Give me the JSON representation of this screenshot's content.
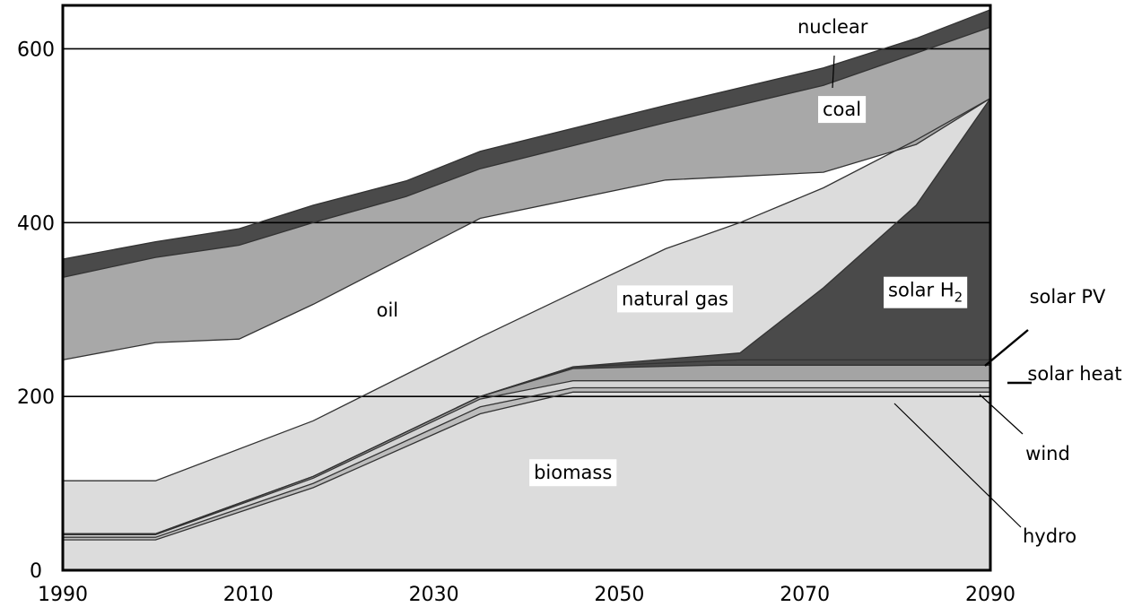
{
  "chart_data": {
    "type": "area",
    "stacked": true,
    "title": "",
    "xlabel": "",
    "ylabel": "",
    "xlim": [
      1990,
      2090
    ],
    "ylim": [
      0,
      650
    ],
    "x_ticks": [
      1990,
      2010,
      2030,
      2050,
      2070,
      2090
    ],
    "y_ticks": [
      0,
      200,
      400,
      600
    ],
    "gridlines": [
      200,
      400,
      600
    ],
    "series": [
      {
        "name": "biomass",
        "color": "#dcdcdc",
        "top": [
          [
            1990,
            35
          ],
          [
            2000,
            35
          ],
          [
            2017,
            95
          ],
          [
            2035,
            180
          ],
          [
            2045,
            205
          ],
          [
            2090,
            205
          ]
        ]
      },
      {
        "name": "hydro",
        "color": "#bcbcbc",
        "top": [
          [
            1990,
            38
          ],
          [
            2000,
            38
          ],
          [
            2017,
            100
          ],
          [
            2035,
            188
          ],
          [
            2045,
            210
          ],
          [
            2090,
            210
          ]
        ]
      },
      {
        "name": "wind",
        "color": "#d4d4d4",
        "top": [
          [
            1990,
            41
          ],
          [
            2000,
            41
          ],
          [
            2017,
            106
          ],
          [
            2035,
            197
          ],
          [
            2045,
            218
          ],
          [
            2090,
            218
          ]
        ]
      },
      {
        "name": "solar heat",
        "color": "#a4a4a4",
        "top": [
          [
            1990,
            42
          ],
          [
            2000,
            42
          ],
          [
            2017,
            108
          ],
          [
            2035,
            200
          ],
          [
            2045,
            232
          ],
          [
            2060,
            236
          ],
          [
            2090,
            236
          ]
        ]
      },
      {
        "name": "solar PV",
        "color": "#4a4a4a",
        "top": [
          [
            1990,
            42
          ],
          [
            2000,
            42
          ],
          [
            2017,
            108
          ],
          [
            2035,
            200
          ],
          [
            2045,
            234
          ],
          [
            2063,
            242
          ],
          [
            2090,
            242
          ]
        ]
      },
      {
        "name": "solar H₂",
        "color": "#4a4a4a",
        "top": [
          [
            1990,
            42
          ],
          [
            2000,
            42
          ],
          [
            2017,
            108
          ],
          [
            2035,
            200
          ],
          [
            2045,
            234
          ],
          [
            2055,
            243
          ],
          [
            2063,
            250
          ],
          [
            2072,
            325
          ],
          [
            2082,
            420
          ],
          [
            2090,
            543
          ]
        ]
      },
      {
        "name": "natural gas",
        "color": "#dcdcdc",
        "top": [
          [
            1990,
            103
          ],
          [
            2000,
            103
          ],
          [
            2017,
            172
          ],
          [
            2035,
            268
          ],
          [
            2055,
            370
          ],
          [
            2063,
            400
          ],
          [
            2072,
            440
          ],
          [
            2082,
            495
          ],
          [
            2090,
            543
          ]
        ]
      },
      {
        "name": "oil",
        "color": "#ffffff",
        "top": [
          [
            1990,
            242
          ],
          [
            2000,
            262
          ],
          [
            2009,
            266
          ],
          [
            2017,
            306
          ],
          [
            2035,
            405
          ],
          [
            2055,
            449
          ],
          [
            2072,
            458
          ],
          [
            2082,
            490
          ],
          [
            2090,
            543
          ]
        ]
      },
      {
        "name": "coal",
        "color": "#a8a8a8",
        "top": [
          [
            1990,
            337
          ],
          [
            2000,
            360
          ],
          [
            2009,
            374
          ],
          [
            2017,
            400
          ],
          [
            2027,
            430
          ],
          [
            2035,
            462
          ],
          [
            2055,
            515
          ],
          [
            2072,
            558
          ],
          [
            2082,
            595
          ],
          [
            2090,
            625
          ]
        ]
      },
      {
        "name": "nuclear",
        "color": "#4a4a4a",
        "top": [
          [
            1990,
            358
          ],
          [
            2000,
            378
          ],
          [
            2009,
            393
          ],
          [
            2017,
            420
          ],
          [
            2027,
            448
          ],
          [
            2035,
            482
          ],
          [
            2055,
            535
          ],
          [
            2072,
            578
          ],
          [
            2082,
            612
          ],
          [
            2090,
            645
          ]
        ]
      }
    ]
  }
}
